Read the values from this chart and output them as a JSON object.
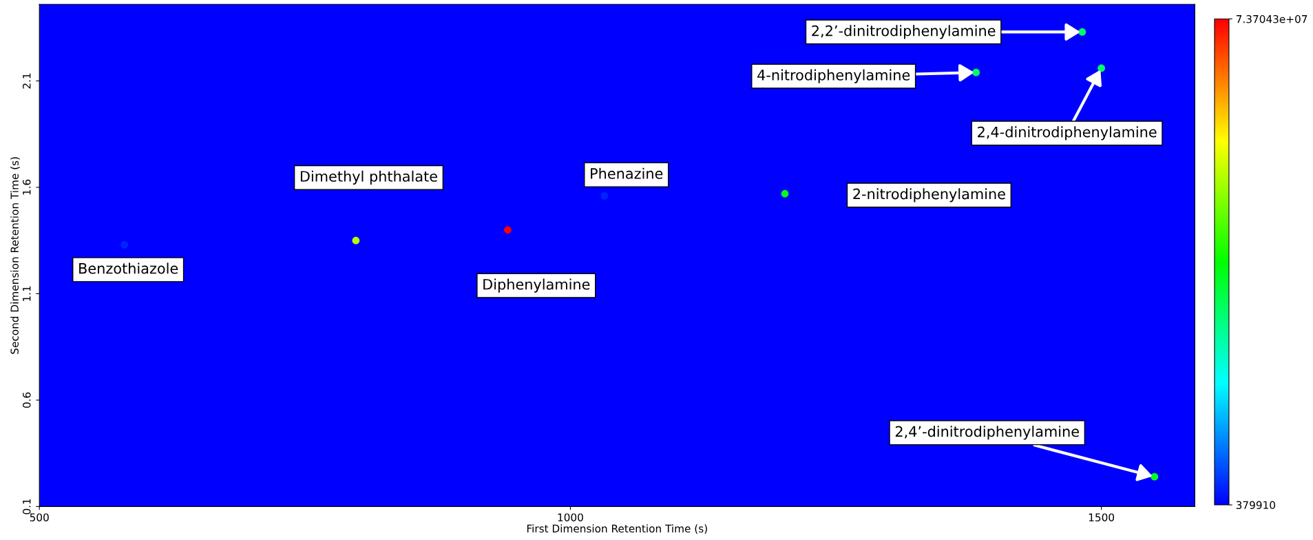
{
  "chart_data": {
    "type": "scatter",
    "xlabel": "First Dimension Retention Time (s)",
    "ylabel": "Second Dimension Retention Time (s)",
    "xlim": [
      500,
      1588
    ],
    "ylim": [
      0.1,
      2.46
    ],
    "xticks": [
      500,
      1000,
      1500
    ],
    "yticks": [
      0.1,
      0.6,
      1.1,
      1.6,
      2.1
    ],
    "clim": [
      379910,
      73704300
    ],
    "cticks": [
      {
        "value": 379910,
        "label": "379910"
      },
      {
        "value": 73704300,
        "label": "7.37043e+07"
      }
    ],
    "x": [
      580,
      798,
      941,
      1032,
      1202,
      1382,
      1482,
      1500,
      1550
    ],
    "values": [
      1.33,
      1.35,
      1.4,
      1.56,
      1.57,
      2.14,
      2.33,
      2.16,
      0.24
    ],
    "cvalues": [
      3000000,
      50000000,
      73704300,
      3000000,
      35000000,
      30000000,
      30000000,
      30000000,
      35000000
    ],
    "marker": "circle",
    "grid": false,
    "legend": false,
    "annotations": [
      {
        "text": "Benzothiazole",
        "x": 580,
        "y": 1.33
      },
      "Dimethyl phthalate",
      "Diphenylamine",
      {
        "text": "Phenazine",
        "x": 1032,
        "y": 1.56
      },
      "2-nitrodiphenylamine",
      {
        "text": "4-nitrodiphenylamine",
        "x": 1382,
        "y": 2.14
      },
      {
        "text": "2,2’-dinitrodiphenylamine",
        "x": 1482,
        "y": 2.33
      },
      {
        "text": "2,4-dinitrodiphenylamine",
        "x": 1500,
        "y": 2.16
      },
      {
        "text": "2,4’-dinitrodiphenylamine",
        "x": 1550,
        "y": 0.24
      }
    ]
  }
}
